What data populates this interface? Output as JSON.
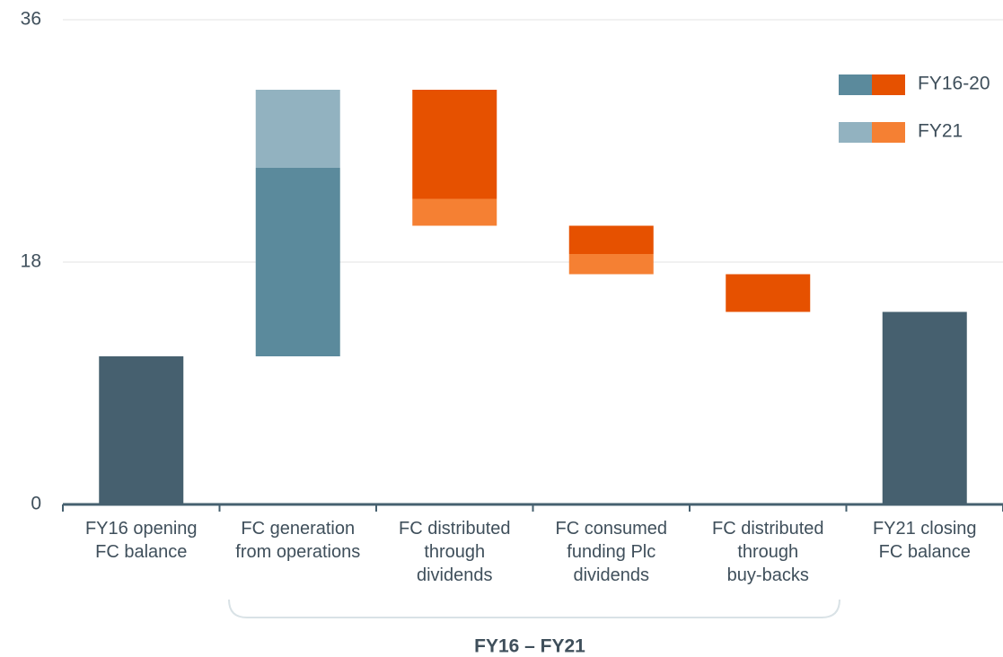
{
  "chart_data": {
    "type": "waterfall",
    "categories": [
      "FY16 opening\nFC balance",
      "FC generation\nfrom operations",
      "FC distributed\nthrough\ndividends",
      "FC consumed\nfunding Plc\ndividends",
      "FC distributed\nthrough\nbuy-backs",
      "FY21 closing\nFC balance"
    ],
    "totals": [
      11,
      null,
      null,
      null,
      null,
      14.3
    ],
    "total_color": "#46606f",
    "series": [
      {
        "name": "FY16-20",
        "color": "#5b8a9c",
        "negative_color": "#e65100",
        "values": [
          null,
          14,
          -8.1,
          -2.1,
          -2.8,
          null
        ]
      },
      {
        "name": "FY21",
        "color": "#92b2c0",
        "negative_color": "#f58033",
        "values": [
          null,
          5.8,
          -2,
          -1.5,
          null,
          null
        ]
      }
    ],
    "ylim": [
      0,
      36
    ],
    "yticks": [
      0,
      18,
      36
    ],
    "grid": true,
    "legend": "top-right",
    "bracket_label": "FY16 – FY21"
  }
}
